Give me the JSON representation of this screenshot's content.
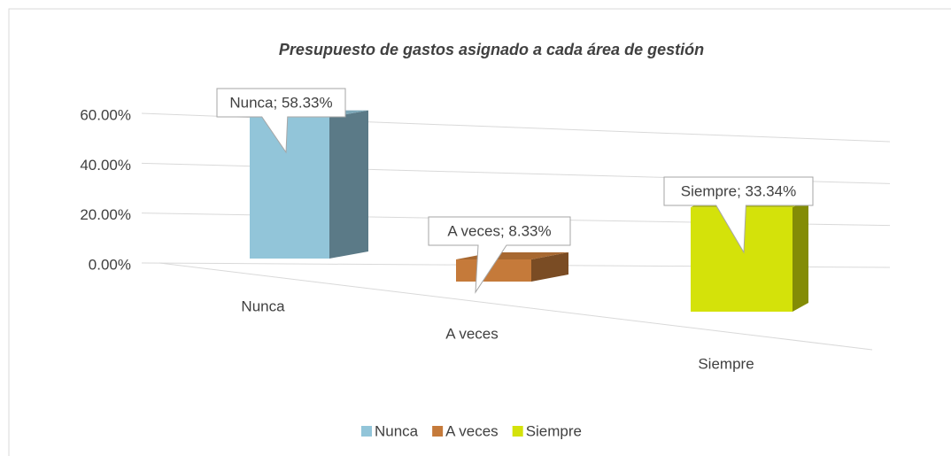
{
  "chart_data": {
    "type": "bar3d",
    "title": "Presupuesto de gastos asignado a cada área de gestión",
    "categories": [
      "Nunca",
      "A veces",
      "Siempre"
    ],
    "values": [
      58.33,
      8.33,
      33.34
    ],
    "value_labels": [
      "Nunca; 58.33%",
      "A veces; 8.33%",
      "Siempre; 33.34%"
    ],
    "colors": [
      "#92c5d9",
      "#c57a3a",
      "#d4e20a"
    ],
    "ylim": [
      0,
      60
    ],
    "yticks": [
      {
        "value": 0,
        "label": "0.00%"
      },
      {
        "value": 20,
        "label": "20.00%"
      },
      {
        "value": 40,
        "label": "40.00%"
      },
      {
        "value": 60,
        "label": "60.00%"
      }
    ],
    "grid": true,
    "legend": "bottom"
  }
}
